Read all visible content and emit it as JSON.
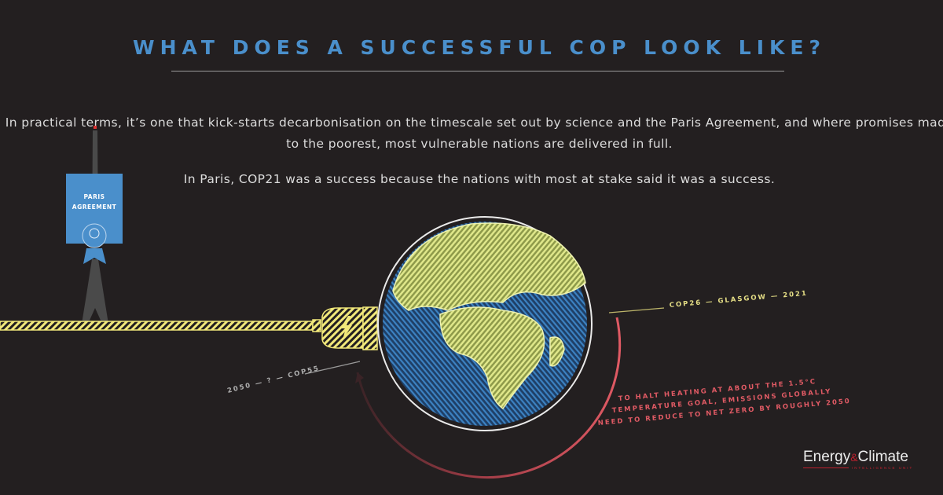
{
  "title": "WHAT DOES A SUCCESSFUL COP LOOK LIKE?",
  "paragraphs": [
    "In practical terms, it’s one that kick-starts decarbonisation on the timescale set out by science and the Paris Agreement, and where promises made to the poorest, most vulnerable nations are delivered in full.",
    "In Paris, COP21 was a success because the nations with most at stake said it was a success."
  ],
  "badge": {
    "line1": "PARIS",
    "line2": "AGREEMENT"
  },
  "labels": {
    "cop26": "COP26 — GLASGOW — 2021",
    "cop55": "2050 — ? — COP55",
    "goal_lines": [
      "TO HALT HEATING AT ABOUT THE 1.5°C",
      "TEMPERATURE GOAL, EMISSIONS GLOBALLY",
      "NEED TO REDUCE TO NET ZERO BY ROUGHLY 2050"
    ]
  },
  "logo": {
    "part1": "Energy",
    "amp": "&",
    "part2": "Climate",
    "sub": "INTELLIGENCE UNIT"
  },
  "colors": {
    "background": "#231f20",
    "title": "#4a8fcb",
    "cable": "#f1e87a",
    "goal": "#e05a64",
    "ocean": "#2f6fa8",
    "land": "#d6e07a"
  }
}
